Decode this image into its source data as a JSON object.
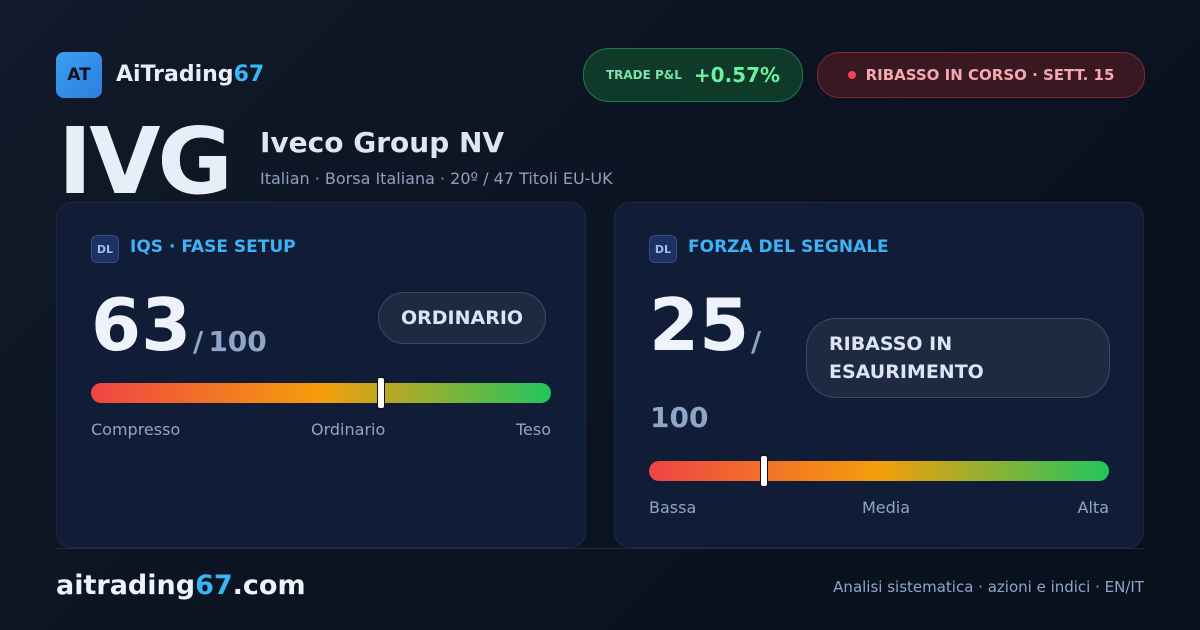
{
  "brand": {
    "logo": "AT",
    "name": "AiTrading",
    "name_accent": "67"
  },
  "badges": {
    "pnl_label": "TRADE P&L",
    "pnl_value": "+0.57%",
    "status": "RIBASSO IN CORSO · SETT. 15"
  },
  "ticker": {
    "symbol": "IVG",
    "company": "Iveco Group NV",
    "details": "Italian · Borsa Italiana · 20º / 47 Titoli EU-UK"
  },
  "gauges": [
    {
      "tag": "DL",
      "title": "IQS · FASE SETUP",
      "score": 63,
      "separator": "/",
      "max": 100,
      "pill": "ORDINARIO",
      "labels": [
        "Compresso",
        "Ordinario",
        "Teso"
      ]
    },
    {
      "tag": "DL",
      "title": "FORZA DEL SEGNALE",
      "score": 25,
      "separator": "/",
      "max": 100,
      "pill": "RIBASSO IN ESAURIMENTO",
      "labels": [
        "Bassa",
        "Media",
        "Alta"
      ]
    }
  ],
  "footer": {
    "site": "aitrading",
    "site_accent": "67",
    "site_tld": ".com",
    "tagline": "Analisi sistematica · azioni e indici · EN/IT"
  }
}
